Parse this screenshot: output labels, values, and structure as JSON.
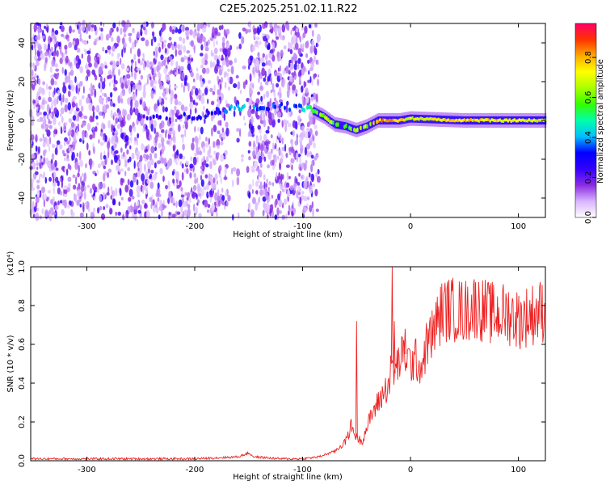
{
  "title": "C2E5.2025.251.02.11.R22",
  "chart_data": [
    {
      "type": "heatmap",
      "xlabel": "Height of straight line (km)",
      "ylabel": "Frequency (Hz)",
      "xlim": [
        -352,
        125
      ],
      "ylim": [
        -50,
        50
      ],
      "xticks": [
        -300,
        -200,
        -100,
        0,
        100
      ],
      "yticks": [
        -40,
        -20,
        0,
        20,
        40
      ],
      "colorbar": {
        "label": "Normalized spectral amplitude",
        "range": [
          0,
          0.97
        ],
        "ticks": [
          "0.0",
          "0.2",
          "0.4",
          "0.6",
          "0.8"
        ],
        "tick_values": [
          0,
          0.2,
          0.4,
          0.6,
          0.8
        ],
        "colormap": [
          "#ffffff",
          "#d8b4ff",
          "#8a2be2",
          "#3300ff",
          "#0000ff",
          "#00bfff",
          "#00ffaa",
          "#33ff00",
          "#aaff00",
          "#ffff00",
          "#ffaa00",
          "#ff3300",
          "#ff0066"
        ]
      },
      "ridge": {
        "description": "dominant frequency ridge vs height",
        "x": [
          -250,
          -200,
          -175,
          -160,
          -150,
          -140,
          -120,
          -100,
          -90,
          -80,
          -70,
          -60,
          -50,
          -40,
          -30,
          -20,
          -10,
          0,
          50,
          125
        ],
        "y": [
          1,
          2,
          5,
          6,
          7,
          6,
          7,
          7,
          5,
          2,
          -2,
          -3,
          -5,
          -3,
          0,
          0,
          0,
          1,
          0,
          0
        ],
        "amplitude": [
          0.25,
          0.25,
          0.3,
          0.45,
          0.35,
          0.3,
          0.35,
          0.4,
          0.55,
          0.65,
          0.6,
          0.55,
          0.6,
          0.65,
          0.75,
          0.85,
          0.75,
          0.7,
          0.75,
          0.7
        ]
      },
      "noise_region": {
        "x_range": [
          -352,
          -85
        ],
        "amplitude": 0.2
      }
    },
    {
      "type": "line",
      "xlabel": "Height of straight line (km)",
      "ylabel": "SNR (10 * v/v)",
      "y_multiplier": "(x10⁴)",
      "xlim": [
        -352,
        125
      ],
      "ylim": [
        0,
        1.0
      ],
      "xticks": [
        -300,
        -200,
        -100,
        0,
        100
      ],
      "yticks": [
        "0.0",
        "0.2",
        "0.4",
        "0.6",
        "0.8",
        "1.0"
      ],
      "ytick_values": [
        0,
        0.2,
        0.4,
        0.6,
        0.8,
        1.0
      ],
      "color": "#ee2222",
      "series": [
        {
          "name": "SNR",
          "x": [
            -352,
            -300,
            -250,
            -200,
            -160,
            -150,
            -145,
            -120,
            -100,
            -85,
            -70,
            -60,
            -55,
            -50,
            -45,
            -40,
            -35,
            -30,
            -25,
            -20,
            -17,
            -15,
            -10,
            -5,
            0,
            5,
            10,
            15,
            20,
            25,
            30,
            40,
            50,
            60,
            70,
            80,
            90,
            100,
            110,
            125
          ],
          "y": [
            0.01,
            0.01,
            0.01,
            0.01,
            0.02,
            0.04,
            0.02,
            0.01,
            0.01,
            0.02,
            0.05,
            0.1,
            0.18,
            0.12,
            0.1,
            0.18,
            0.25,
            0.3,
            0.35,
            0.4,
            0.5,
            0.45,
            0.52,
            0.55,
            0.5,
            0.52,
            0.48,
            0.6,
            0.65,
            0.72,
            0.78,
            0.78,
            0.77,
            0.8,
            0.77,
            0.75,
            0.76,
            0.73,
            0.75,
            0.78
          ]
        }
      ],
      "spikes": {
        "x": [
          -50,
          -17,
          -15,
          -5
        ],
        "y": [
          0.72,
          1.0,
          0.72,
          0.68
        ]
      }
    }
  ]
}
